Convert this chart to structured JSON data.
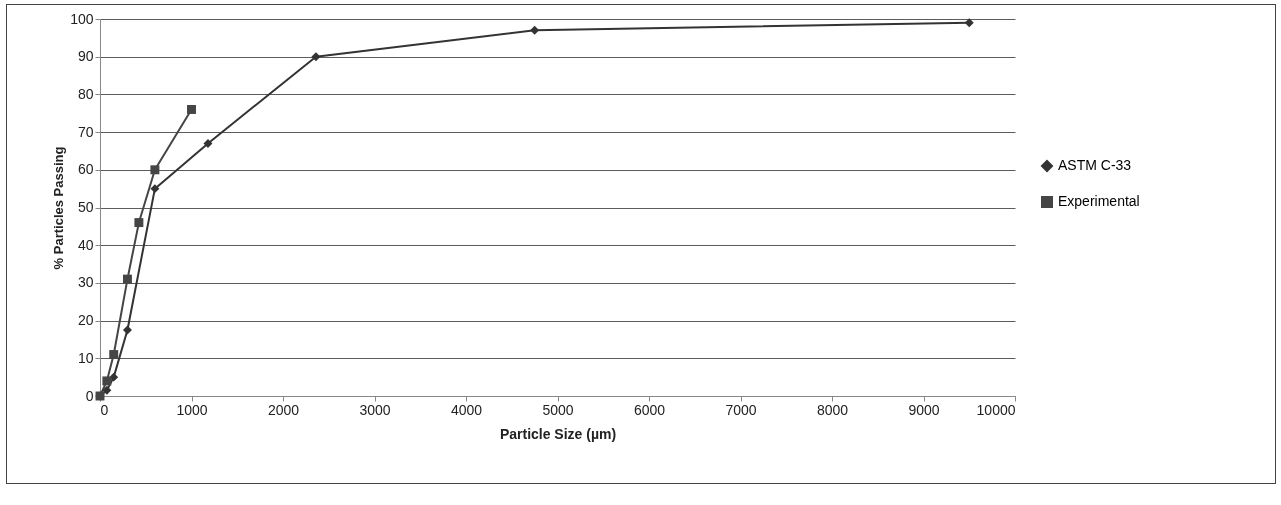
{
  "chart_data": {
    "type": "line",
    "xlabel": "Particle Size (µm)",
    "ylabel": "% Particles Passing",
    "xlim": [
      0,
      10000
    ],
    "xticks": [
      0,
      1000,
      2000,
      3000,
      4000,
      5000,
      6000,
      7000,
      8000,
      9000,
      10000
    ],
    "ylim": [
      0,
      100
    ],
    "yticks": [
      0,
      10,
      20,
      30,
      40,
      50,
      60,
      70,
      80,
      90,
      100
    ],
    "grid": "y",
    "legend": "right",
    "series": [
      {
        "name": "ASTM C-33",
        "color": "#333333",
        "marker": "diamond",
        "x": [
          0,
          75,
          150,
          300,
          600,
          1180,
          2360,
          4750,
          9500
        ],
        "values": [
          0,
          1.5,
          5,
          17.5,
          55,
          67,
          90,
          97,
          99
        ]
      },
      {
        "name": "Experimental",
        "color": "#454545",
        "marker": "square",
        "x": [
          0,
          75,
          150,
          300,
          425,
          600,
          1000
        ],
        "values": [
          0,
          4,
          11,
          31,
          46,
          60,
          76
        ]
      }
    ]
  }
}
